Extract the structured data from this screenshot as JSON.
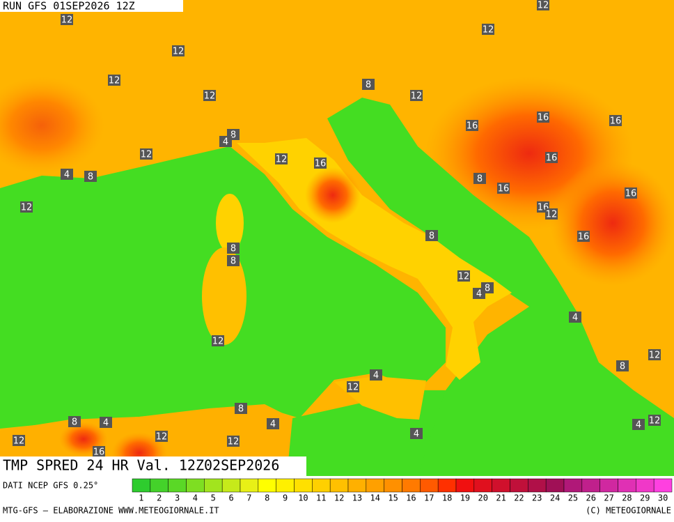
{
  "header": {
    "run": "RUN GFS 01SEP2026 12Z"
  },
  "map": {
    "title": "TMP SPRED 24 HR Val. 12Z02SEP2026",
    "labels": [
      12,
      12,
      12,
      12,
      12,
      4,
      8,
      12,
      12,
      16,
      8,
      4,
      8,
      12,
      12,
      12,
      16,
      16,
      16,
      16,
      16,
      8,
      16,
      16,
      12,
      16,
      8,
      8,
      8,
      12,
      8,
      4,
      4,
      12,
      12,
      8,
      4,
      12,
      8,
      8,
      4,
      4,
      4,
      12,
      4,
      12,
      12,
      12,
      16
    ]
  },
  "legend": {
    "labels": [
      1,
      2,
      3,
      4,
      5,
      6,
      7,
      8,
      9,
      10,
      11,
      12,
      13,
      14,
      15,
      16,
      17,
      18,
      19,
      20,
      21,
      22,
      23,
      24,
      25,
      26,
      27,
      28,
      29,
      30
    ],
    "colors": [
      "#2ecc2e",
      "#44d22a",
      "#5ad826",
      "#7ede22",
      "#a2e41e",
      "#c6ea1a",
      "#e8f016",
      "#ffff00",
      "#fff000",
      "#ffe000",
      "#ffd000",
      "#ffc000",
      "#ffb000",
      "#ffa000",
      "#ff9000",
      "#ff7a00",
      "#ff5a00",
      "#ff3000",
      "#f01010",
      "#e0101e",
      "#d0102c",
      "#c0103a",
      "#b01048",
      "#a01056",
      "#b01878",
      "#c0208c",
      "#d028a0",
      "#e030b4",
      "#f038c8",
      "#ff40e0"
    ]
  },
  "footer": {
    "source": "DATI NCEP GFS 0.25°",
    "credit": "MTG-GFS — ELABORAZIONE WWW.METEOGIORNALE.IT",
    "copyright": "(C) METEOGIORNALE"
  }
}
